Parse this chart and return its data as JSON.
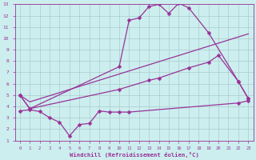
{
  "line1_x": [
    0,
    1,
    10,
    11,
    12,
    13,
    14,
    15,
    16,
    17,
    19,
    22,
    23
  ],
  "line1_y": [
    5.0,
    3.8,
    7.5,
    11.6,
    11.8,
    12.8,
    13.0,
    12.2,
    13.1,
    12.7,
    10.5,
    6.2,
    4.7
  ],
  "line2_x": [
    0,
    1,
    10,
    13,
    14,
    17,
    19,
    20,
    22,
    23
  ],
  "line2_y": [
    5.0,
    3.8,
    5.5,
    6.3,
    6.5,
    7.4,
    7.9,
    8.5,
    6.2,
    4.7
  ],
  "line3_x": [
    0,
    1,
    23
  ],
  "line3_y": [
    5.0,
    4.4,
    10.4
  ],
  "line4_x": [
    0,
    1,
    2,
    3,
    4,
    5,
    6,
    7,
    8,
    9,
    10,
    11,
    22,
    23
  ],
  "line4_y": [
    3.6,
    3.7,
    3.55,
    3.0,
    2.6,
    1.4,
    2.4,
    2.5,
    3.6,
    3.5,
    3.5,
    3.5,
    4.3,
    4.5
  ],
  "line_color": "#993399",
  "bg_color": "#cceeee",
  "grid_color": "#aacccc",
  "axis_color": "#993399",
  "xlabel": "Windchill (Refroidissement éolien,°C)",
  "xlim": [
    -0.5,
    23.5
  ],
  "ylim": [
    1,
    13
  ],
  "xticks": [
    0,
    1,
    2,
    3,
    4,
    5,
    6,
    7,
    8,
    9,
    10,
    11,
    12,
    13,
    14,
    15,
    16,
    17,
    18,
    19,
    20,
    21,
    22,
    23
  ],
  "yticks": [
    1,
    2,
    3,
    4,
    5,
    6,
    7,
    8,
    9,
    10,
    11,
    12,
    13
  ]
}
